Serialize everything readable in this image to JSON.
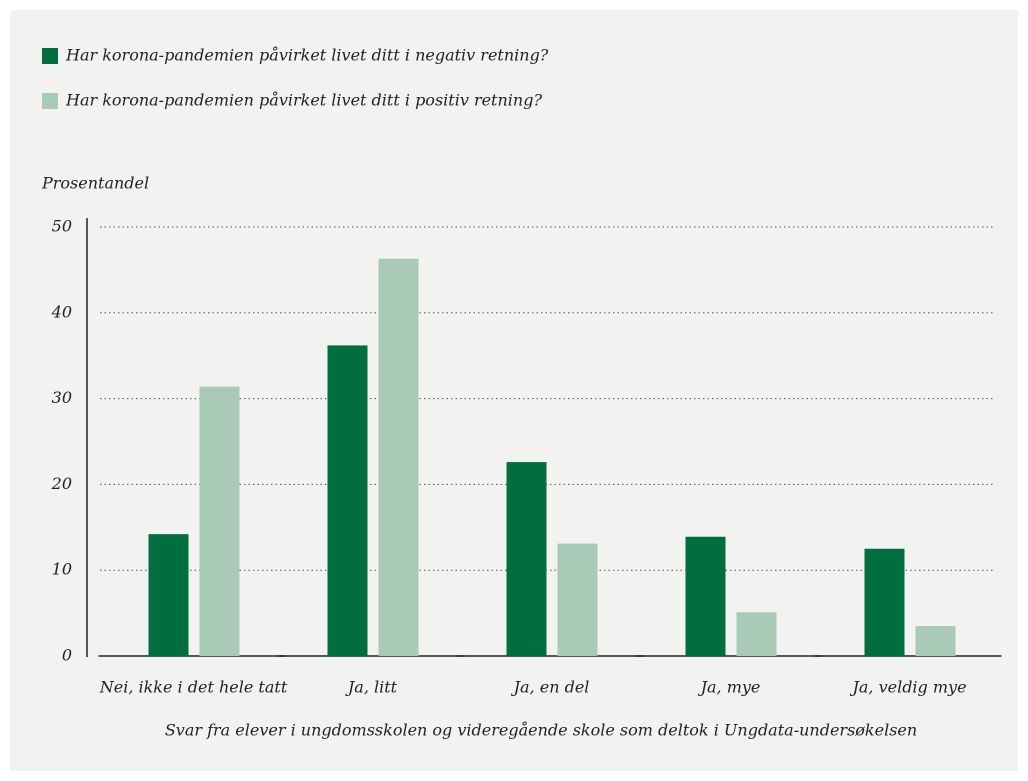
{
  "chart_data": {
    "type": "bar",
    "y_label": "Prosentandel",
    "x_label": "Svar fra elever i ungdomsskolen og videregående skole som deltok i Ungdata-undersøkelsen",
    "categories": [
      "Nei, ikke i det hele tatt",
      "Ja, litt",
      "Ja, en del",
      "Ja, mye",
      "Ja, veldig mye"
    ],
    "series": [
      {
        "name": "Har korona-pandemien påvirket livet ditt i negativ retning?",
        "color": "#006e3e",
        "values": [
          14.2,
          36.2,
          22.6,
          13.9,
          12.5
        ]
      },
      {
        "name": "Har korona-pandemien påvirket livet ditt i positiv retning?",
        "color": "#a8cab6",
        "values": [
          31.4,
          46.3,
          13.1,
          5.1,
          3.5
        ]
      }
    ],
    "ylim": [
      0,
      50
    ],
    "yticks": [
      0,
      10,
      20,
      30,
      40,
      50
    ],
    "grid": true,
    "legend": "top-left"
  }
}
